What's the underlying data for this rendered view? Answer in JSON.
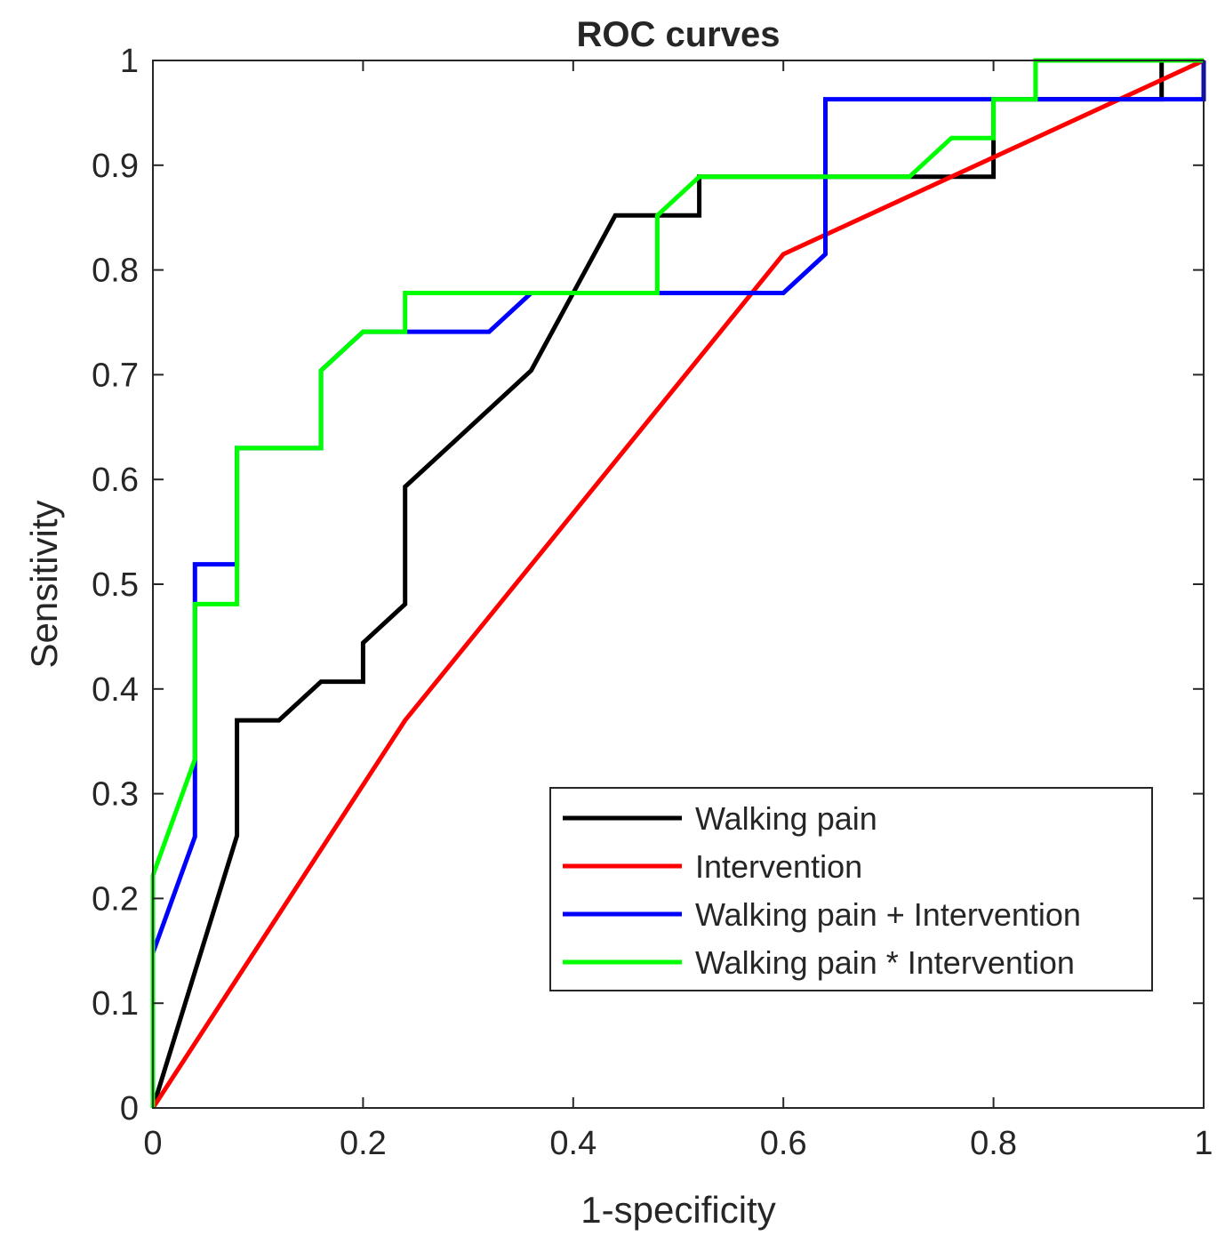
{
  "chart_data": {
    "type": "line",
    "title": "ROC curves",
    "xlabel": "1-specificity",
    "ylabel": "Sensitivity",
    "xlim": [
      0,
      1
    ],
    "ylim": [
      0,
      1
    ],
    "xticks": [
      "0",
      "0.2",
      "0.4",
      "0.6",
      "0.8",
      "1"
    ],
    "yticks": [
      "0",
      "0.1",
      "0.2",
      "0.3",
      "0.4",
      "0.5",
      "0.6",
      "0.7",
      "0.8",
      "0.9",
      "1"
    ],
    "grid": false,
    "legend_position": "lower-right",
    "series": [
      {
        "name": "Walking pain",
        "color": "#000000",
        "points": [
          [
            0,
            0
          ],
          [
            0.08,
            0.26
          ],
          [
            0.08,
            0.37
          ],
          [
            0.12,
            0.37
          ],
          [
            0.16,
            0.407
          ],
          [
            0.2,
            0.407
          ],
          [
            0.2,
            0.444
          ],
          [
            0.24,
            0.481
          ],
          [
            0.24,
            0.593
          ],
          [
            0.28,
            0.63
          ],
          [
            0.36,
            0.704
          ],
          [
            0.44,
            0.852
          ],
          [
            0.52,
            0.852
          ],
          [
            0.52,
            0.889
          ],
          [
            0.72,
            0.889
          ],
          [
            0.8,
            0.889
          ],
          [
            0.8,
            0.963
          ],
          [
            0.96,
            0.963
          ],
          [
            0.96,
            1
          ],
          [
            1,
            1
          ]
        ]
      },
      {
        "name": "Intervention",
        "color": "#ff0000",
        "points": [
          [
            0,
            0
          ],
          [
            0.24,
            0.37
          ],
          [
            0.6,
            0.815
          ],
          [
            1,
            1
          ]
        ]
      },
      {
        "name": "Walking pain + Intervention",
        "color": "#0000ff",
        "points": [
          [
            0,
            0
          ],
          [
            0,
            0.148
          ],
          [
            0.04,
            0.259
          ],
          [
            0.04,
            0.519
          ],
          [
            0.08,
            0.519
          ],
          [
            0.08,
            0.63
          ],
          [
            0.16,
            0.63
          ],
          [
            0.16,
            0.704
          ],
          [
            0.2,
            0.741
          ],
          [
            0.24,
            0.741
          ],
          [
            0.32,
            0.741
          ],
          [
            0.36,
            0.778
          ],
          [
            0.6,
            0.778
          ],
          [
            0.64,
            0.815
          ],
          [
            0.64,
            0.963
          ],
          [
            1,
            0.963
          ],
          [
            1,
            1
          ]
        ]
      },
      {
        "name": "Walking pain * Intervention",
        "color": "#00ff00",
        "points": [
          [
            0,
            0
          ],
          [
            0,
            0.222
          ],
          [
            0.04,
            0.333
          ],
          [
            0.04,
            0.481
          ],
          [
            0.08,
            0.481
          ],
          [
            0.08,
            0.63
          ],
          [
            0.16,
            0.63
          ],
          [
            0.16,
            0.704
          ],
          [
            0.2,
            0.741
          ],
          [
            0.24,
            0.741
          ],
          [
            0.24,
            0.778
          ],
          [
            0.48,
            0.778
          ],
          [
            0.48,
            0.852
          ],
          [
            0.52,
            0.889
          ],
          [
            0.72,
            0.889
          ],
          [
            0.76,
            0.926
          ],
          [
            0.8,
            0.926
          ],
          [
            0.8,
            0.963
          ],
          [
            0.84,
            0.963
          ],
          [
            0.84,
            1
          ],
          [
            1,
            1
          ]
        ]
      }
    ]
  }
}
